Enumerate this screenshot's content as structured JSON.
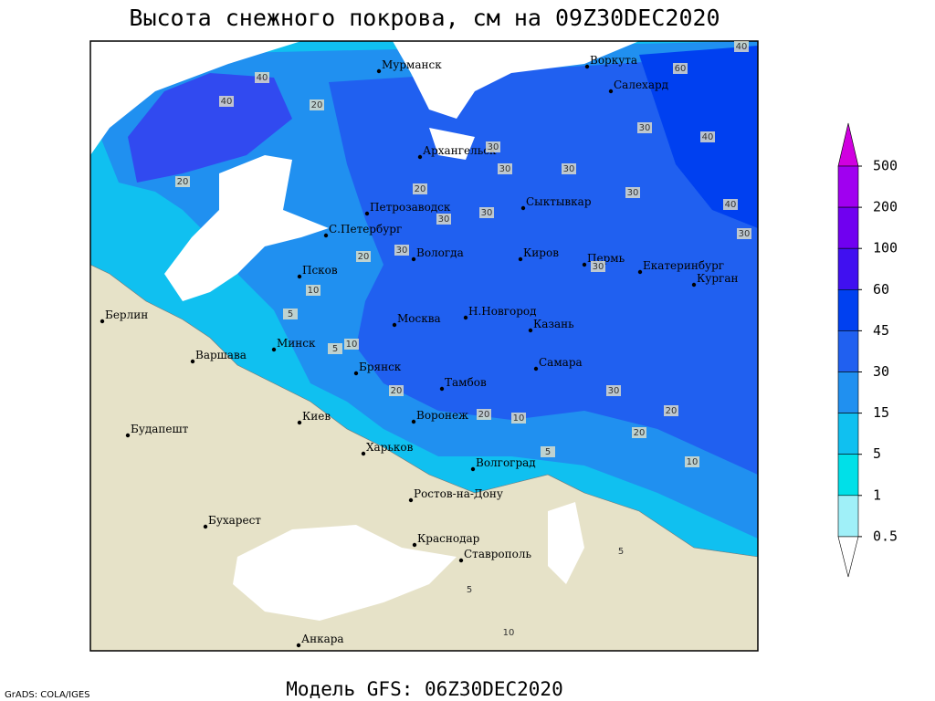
{
  "header": {
    "title": "Высота снежного покрова, см на 09Z30DEC2020"
  },
  "footer": {
    "model": "Модель GFS: 06Z30DEC2020",
    "credit": "GrADS: COLA/IGES"
  },
  "legend": {
    "levels": [
      500,
      200,
      100,
      60,
      45,
      30,
      15,
      5,
      1,
      0.5
    ],
    "colors": [
      "#d000e0",
      "#a000f0",
      "#7000f0",
      "#4010f0",
      "#0040f0",
      "#2060f0",
      "#2090f0",
      "#10c0f0",
      "#00e0e8",
      "#a0f0f8",
      "#ffffff"
    ]
  },
  "cities": [
    "Мурманск",
    "Воркута",
    "Салехард",
    "Архангельск",
    "Сыктывкар",
    "Петрозаводск",
    "С.Петербург",
    "Вологда",
    "Киров",
    "Пермь",
    "Екатеринбург",
    "Курган",
    "Псков",
    "Н.Новгород",
    "Казань",
    "Москва",
    "Минск",
    "Берлин",
    "Варшава",
    "Самара",
    "Брянск",
    "Тамбов",
    "Киев",
    "Воронеж",
    "Будапешт",
    "Харьков",
    "Волгоград",
    "Ростов-на-Дону",
    "Бухарест",
    "Краснодар",
    "Ставрополь",
    "Анкара"
  ],
  "contour_labels": [
    40,
    60,
    40,
    20,
    40,
    20,
    30,
    30,
    20,
    30,
    30,
    30,
    30,
    40,
    30,
    40,
    30,
    30,
    20,
    30,
    10,
    5,
    5,
    10,
    20,
    20,
    10,
    20,
    30,
    20,
    10,
    5,
    5,
    5,
    10
  ]
}
